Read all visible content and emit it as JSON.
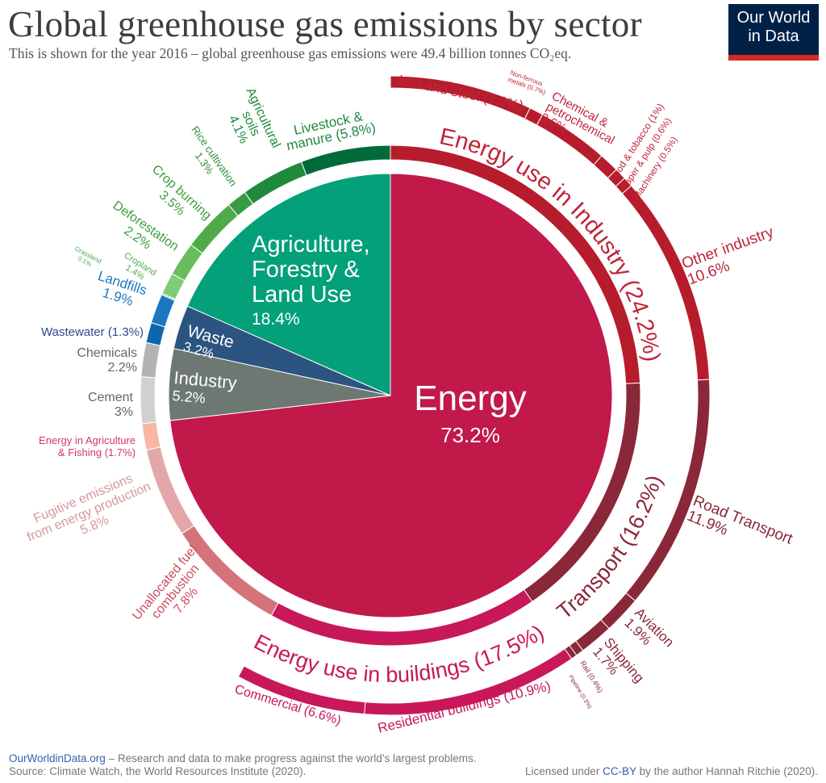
{
  "header": {
    "title": "Global greenhouse gas emissions by sector",
    "subtitle": "This is shown for the year 2016 – global greenhouse gas emissions were 49.4 billion tonnes CO₂eq.",
    "logo": "Our World in Data",
    "logo_lines": [
      "Our World",
      "in Data"
    ]
  },
  "footer": {
    "site_link": "OurWorldinData.org",
    "tagline": " – Research and data to make progress against the world’s largest problems.",
    "source": "Source: Climate Watch, the World Resources Institute (2020).",
    "license_prefix": "Licensed under ",
    "license_link": "CC-BY",
    "license_suffix": " by the author Hannah Ritchie (2020)."
  },
  "chart_data": {
    "type": "sunburst",
    "unit": "% of global greenhouse gas emissions",
    "year": 2016,
    "sectors": [
      {
        "name": "Energy",
        "value": 73.2,
        "label": [
          "Energy",
          "73.2%"
        ],
        "color": "#c0194a"
      },
      {
        "name": "Industry",
        "value": 5.2,
        "label": [
          "Industry",
          "5.2%"
        ],
        "color": "#6e7873"
      },
      {
        "name": "Waste",
        "value": 3.2,
        "label": [
          "Waste",
          "3.2%"
        ],
        "color": "#2c5480"
      },
      {
        "name": "Agriculture, Forestry & Land Use",
        "value": 18.4,
        "label": [
          "Agriculture,",
          "Forestry &",
          "Land Use",
          "18.4%"
        ],
        "color": "#03a07a"
      }
    ],
    "subsectors": [
      {
        "parent": "Energy",
        "name": "Energy use in Industry",
        "value": 24.2,
        "label": [
          "Energy use in Industry (24.2%)"
        ],
        "color": "#b71c2c",
        "text_color": "#c0243a"
      },
      {
        "parent": "Energy",
        "name": "Transport",
        "value": 16.2,
        "label": [
          "Transport (16.2%)"
        ],
        "color": "#8a2739",
        "text_color": "#8a2739"
      },
      {
        "parent": "Energy",
        "name": "Energy use in buildings",
        "value": 17.5,
        "label": [
          "Energy use in buildings (17.5%)"
        ],
        "color": "#c8185a",
        "text_color": "#c8185a"
      },
      {
        "parent": "Energy",
        "name": "Unallocated fuel combustion",
        "value": 7.8,
        "label": [
          "Unallocated fuel",
          "combustion",
          "7.8%"
        ],
        "color": "#d4737a",
        "text_color": "#c9505d"
      },
      {
        "parent": "Energy",
        "name": "Fugitive emissions from energy production",
        "value": 5.8,
        "label": [
          "Fugitive emissions",
          "from energy production",
          "5.8%"
        ],
        "color": "#e3a7aa",
        "text_color": "#d4989c"
      },
      {
        "parent": "Energy",
        "name": "Energy in Agriculture & Fishing",
        "value": 1.7,
        "label": [
          "Energy in Agriculture",
          "& Fishing (1.7%)"
        ],
        "color": "#f9b6a3",
        "text_color": "#d6336c"
      },
      {
        "parent": "Industry",
        "name": "Cement",
        "value": 3,
        "label": [
          "Cement",
          "3%"
        ],
        "color": "#d0d0d0",
        "text_color": "#666666"
      },
      {
        "parent": "Industry",
        "name": "Chemicals",
        "value": 2.2,
        "label": [
          "Chemicals",
          "2.2%"
        ],
        "color": "#b3b3b3",
        "text_color": "#666666"
      },
      {
        "parent": "Waste",
        "name": "Wastewater",
        "value": 1.3,
        "label": [
          "Wastewater (1.3%)"
        ],
        "color": "#0d66b0",
        "text_color": "#2d4a8a"
      },
      {
        "parent": "Waste",
        "name": "Landfills",
        "value": 1.9,
        "label": [
          "Landfills",
          "1.9%"
        ],
        "color": "#1a78c2",
        "text_color": "#1a78c2"
      },
      {
        "parent": "Agriculture, Forestry & Land Use",
        "name": "Grassland",
        "value": 0.1,
        "label": [
          "Grassland",
          "0.1%"
        ],
        "color": "#8fd48a",
        "text_color": "#4cae4c"
      },
      {
        "parent": "Agriculture, Forestry & Land Use",
        "name": "Cropland",
        "value": 1.4,
        "label": [
          "Cropland",
          "1.4%"
        ],
        "color": "#7fcc78",
        "text_color": "#4cae4c"
      },
      {
        "parent": "Agriculture, Forestry & Land Use",
        "name": "Deforestation",
        "value": 2.2,
        "label": [
          "Deforestation",
          "2.2%"
        ],
        "color": "#66bd5a",
        "text_color": "#3d9e40"
      },
      {
        "parent": "Agriculture, Forestry & Land Use",
        "name": "Crop burning",
        "value": 3.5,
        "label": [
          "Crop burning",
          "3.5%"
        ],
        "color": "#4fab48",
        "text_color": "#3d9e40"
      },
      {
        "parent": "Agriculture, Forestry & Land Use",
        "name": "Rice cultivation",
        "value": 1.3,
        "label": [
          "Rice cultivation",
          "1.3%"
        ],
        "color": "#3a9a44",
        "text_color": "#2e8b3e"
      },
      {
        "parent": "Agriculture, Forestry & Land Use",
        "name": "Agricultural soils",
        "value": 4.1,
        "label": [
          "Agricultural",
          "soils",
          "4.1%"
        ],
        "color": "#1f893d",
        "text_color": "#1f893d"
      },
      {
        "parent": "Agriculture, Forestry & Land Use",
        "name": "Livestock & manure",
        "value": 5.8,
        "label": [
          "Livestock &",
          "manure (5.8%)"
        ],
        "color": "#006b38",
        "text_color": "#1f893d"
      }
    ],
    "subsubsectors": [
      {
        "parent": "Energy use in Industry",
        "name": "Iron and steel",
        "value": 7.2,
        "label": [
          "Iron and steel (7.2%)"
        ]
      },
      {
        "parent": "Energy use in Industry",
        "name": "Non-ferrous metals",
        "value": 0.7,
        "label": [
          "Non-ferrous",
          "metals (0.7%)"
        ]
      },
      {
        "parent": "Energy use in Industry",
        "name": "Chemical & petrochemical",
        "value": 3.6,
        "label": [
          "Chemical &",
          "petrochemical",
          "3.6%"
        ]
      },
      {
        "parent": "Energy use in Industry",
        "name": "Food & tobacco",
        "value": 1,
        "label": [
          "Food & tobacco (1%)"
        ]
      },
      {
        "parent": "Energy use in Industry",
        "name": "Paper & pulp",
        "value": 0.6,
        "label": [
          "Paper & pulp (0.6%)"
        ]
      },
      {
        "parent": "Energy use in Industry",
        "name": "Machinery",
        "value": 0.5,
        "label": [
          "Machinery (0.5%)"
        ]
      },
      {
        "parent": "Energy use in Industry",
        "name": "Other industry",
        "value": 10.6,
        "label": [
          "Other industry",
          "10.6%"
        ]
      },
      {
        "parent": "Transport",
        "name": "Road Transport",
        "value": 11.9,
        "label": [
          "Road Transport",
          "11.9%"
        ]
      },
      {
        "parent": "Transport",
        "name": "Aviation",
        "value": 1.9,
        "label": [
          "Aviation",
          "1.9%"
        ]
      },
      {
        "parent": "Transport",
        "name": "Shipping",
        "value": 1.7,
        "label": [
          "Shipping",
          "1.7%"
        ]
      },
      {
        "parent": "Transport",
        "name": "Rail",
        "value": 0.4,
        "label": [
          "Rail (0.4%)"
        ]
      },
      {
        "parent": "Transport",
        "name": "Pipeline",
        "value": 0.3,
        "label": [
          "Pipeline (0.3%)"
        ]
      },
      {
        "parent": "Energy use in buildings",
        "name": "Residential buildings",
        "value": 10.9,
        "label": [
          "Residential buildings (10.9%)"
        ]
      },
      {
        "parent": "Energy use in buildings",
        "name": "Commercial",
        "value": 6.6,
        "label": [
          "Commercial  (6.6%)"
        ]
      }
    ]
  }
}
